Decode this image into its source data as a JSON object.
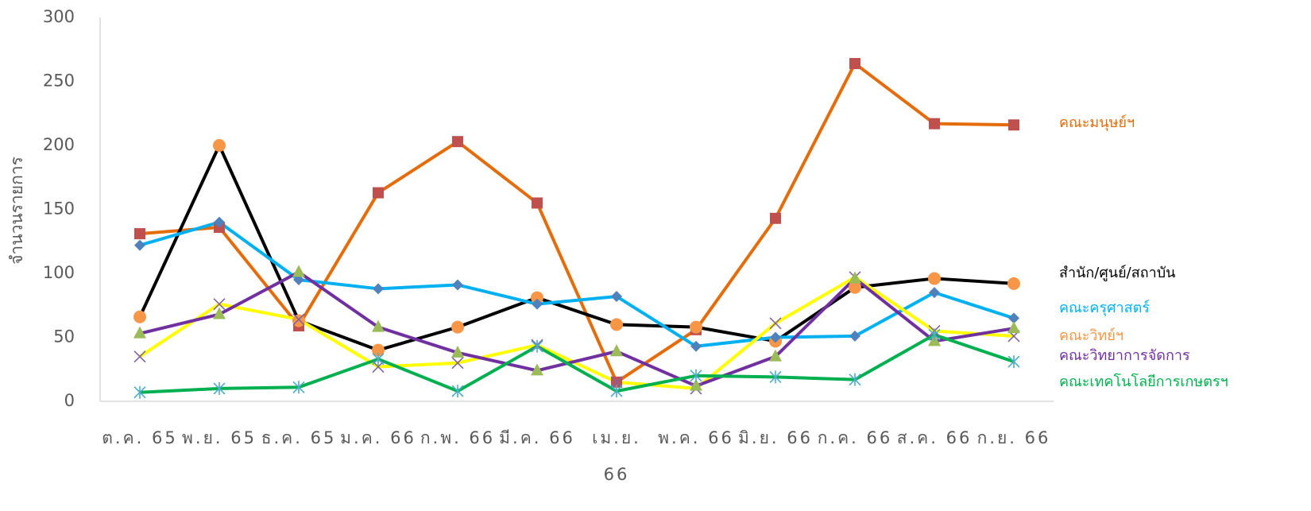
{
  "chart_data": {
    "type": "line",
    "y_label": "จำนวนรายการ",
    "categories": [
      "ต.ค. 65",
      "พ.ย. 65",
      "ธ.ค. 65",
      "ม.ค. 66",
      "ก.พ. 66",
      "มี.ค. 66",
      "เม.ย. 66",
      "พ.ค. 66",
      "มิ.ย. 66",
      "ก.ค. 66",
      "ส.ค. 66",
      "ก.ย. 66"
    ],
    "ylim": [
      0,
      300
    ],
    "yticks": [
      0,
      50,
      100,
      150,
      200,
      250,
      300
    ],
    "grid": false,
    "series": [
      {
        "name": "คณะมนุษย์ฯ",
        "color": "#e46c0a",
        "marker": "square",
        "marker_color": "#c0504d",
        "label_color": "#e46c0a",
        "values": [
          131,
          136,
          59,
          163,
          203,
          155,
          15,
          56,
          143,
          264,
          217,
          216
        ]
      },
      {
        "name": "สำนัก/ศูนย์/สถาบัน",
        "color": "#000000",
        "marker": "circle",
        "marker_color": "#f79646",
        "label_color": "#000000",
        "values": [
          66,
          200,
          63,
          40,
          58,
          81,
          60,
          58,
          47,
          89,
          96,
          92
        ]
      },
      {
        "name": "คณะครุศาสตร์",
        "color": "#00b0f0",
        "marker": "diamond",
        "marker_color": "#4f81bd",
        "label_color": "#00b0f0",
        "values": [
          122,
          140,
          95,
          88,
          91,
          76,
          82,
          43,
          50,
          51,
          85,
          65
        ]
      },
      {
        "name": "คณะวิทย์ฯ",
        "color": "#ffff00",
        "marker": "x",
        "marker_color": "#8064a2",
        "label_color": "#f79646",
        "values": [
          35,
          76,
          64,
          27,
          30,
          44,
          15,
          10,
          61,
          97,
          55,
          51
        ]
      },
      {
        "name": "คณะวิทยาการจัดการ",
        "color": "#7030a0",
        "marker": "triangle",
        "marker_color": "#9bbb59",
        "label_color": "#7030a0",
        "values": [
          53,
          68,
          101,
          58,
          38,
          24,
          39,
          12,
          35,
          96,
          47,
          57
        ]
      },
      {
        "name": "คณะเทคโนโลยีการเกษตรฯ",
        "color": "#00b050",
        "marker": "star",
        "marker_color": "#4bacc6",
        "label_color": "#00b050",
        "values": [
          7,
          10,
          11,
          33,
          8,
          43,
          8,
          20,
          19,
          17,
          52,
          31
        ]
      }
    ]
  }
}
